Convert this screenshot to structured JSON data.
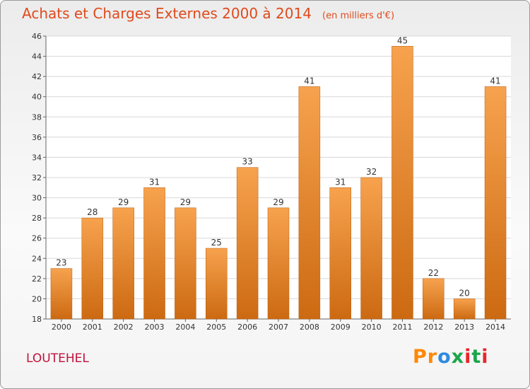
{
  "chart_data": {
    "type": "bar",
    "title": "Achats et Charges Externes 2000 à 2014",
    "unit_note": "(en milliers d'€)",
    "categories": [
      "2000",
      "2001",
      "2002",
      "2003",
      "2004",
      "2005",
      "2006",
      "2007",
      "2008",
      "2009",
      "2010",
      "2011",
      "2012",
      "2013",
      "2014"
    ],
    "values": [
      23,
      28,
      29,
      31,
      29,
      25,
      33,
      29,
      41,
      31,
      32,
      45,
      22,
      20,
      41
    ],
    "ylim": [
      18,
      46
    ],
    "yticks": [
      18,
      20,
      22,
      24,
      26,
      28,
      30,
      32,
      34,
      36,
      38,
      40,
      42,
      44,
      46
    ],
    "grid": true,
    "legend": "none",
    "bar_color_top": "#f7a24e",
    "bar_color_bottom": "#cc6a12"
  },
  "footer": {
    "commune": "LOUTEHEL",
    "logo_text": "Proxiti"
  }
}
